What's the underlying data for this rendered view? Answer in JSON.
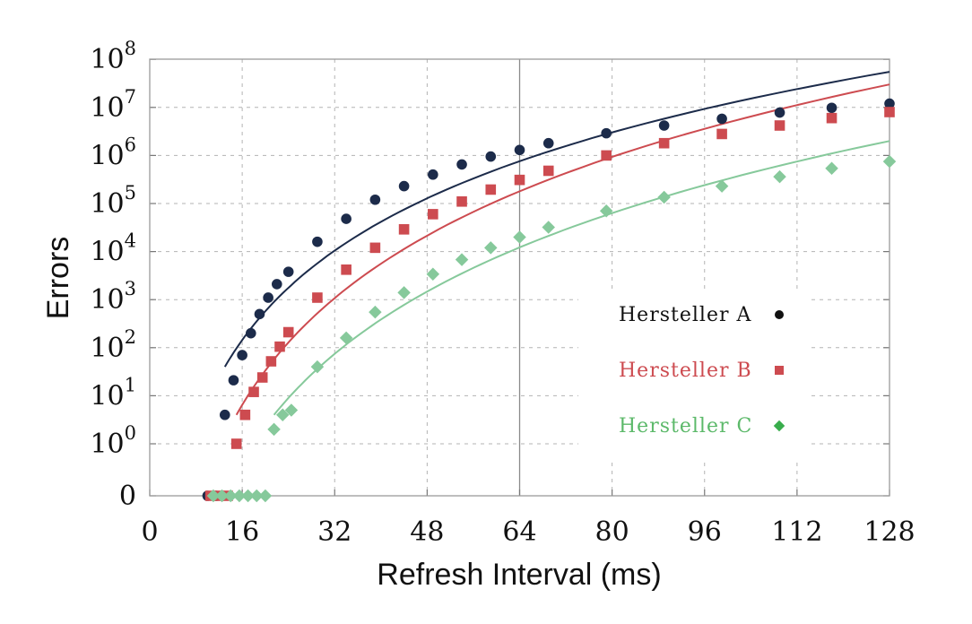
{
  "chart_data": {
    "type": "scatter",
    "title": "",
    "xlabel": "Refresh Interval (ms)",
    "ylabel": "Errors",
    "x_ticks": [
      "0",
      "16",
      "32",
      "48",
      "64",
      "80",
      "96",
      "112",
      "128"
    ],
    "x_tick_values": [
      0,
      16,
      32,
      48,
      64,
      80,
      96,
      112,
      128
    ],
    "xlim": [
      0,
      128
    ],
    "y_scale": "log (with separate zero row)",
    "y_ticks": [
      {
        "base": "0",
        "exp": ""
      },
      {
        "base": "10",
        "exp": "0"
      },
      {
        "base": "10",
        "exp": "1"
      },
      {
        "base": "10",
        "exp": "2"
      },
      {
        "base": "10",
        "exp": "3"
      },
      {
        "base": "10",
        "exp": "4"
      },
      {
        "base": "10",
        "exp": "5"
      },
      {
        "base": "10",
        "exp": "6"
      },
      {
        "base": "10",
        "exp": "7"
      },
      {
        "base": "10",
        "exp": "8"
      }
    ],
    "ylim": [
      1,
      100000000
    ],
    "grid": true,
    "legend_position": "right",
    "series": [
      {
        "name": "Hersteller A",
        "marker": "circle",
        "color": "#1c2b4a",
        "points": [
          {
            "x": 10,
            "y": 0
          },
          {
            "x": 11.5,
            "y": 0
          },
          {
            "x": 13,
            "y": 4
          },
          {
            "x": 14.5,
            "y": 21
          },
          {
            "x": 16,
            "y": 70
          },
          {
            "x": 17.5,
            "y": 200
          },
          {
            "x": 19,
            "y": 500
          },
          {
            "x": 20.5,
            "y": 1100
          },
          {
            "x": 22,
            "y": 2100
          },
          {
            "x": 24,
            "y": 3800
          },
          {
            "x": 29,
            "y": 16000
          },
          {
            "x": 34,
            "y": 48000
          },
          {
            "x": 39,
            "y": 120000
          },
          {
            "x": 44,
            "y": 230000
          },
          {
            "x": 49,
            "y": 400000
          },
          {
            "x": 54,
            "y": 650000
          },
          {
            "x": 59,
            "y": 950000
          },
          {
            "x": 64,
            "y": 1300000
          },
          {
            "x": 69,
            "y": 1800000
          },
          {
            "x": 79,
            "y": 2900000
          },
          {
            "x": 89,
            "y": 4200000
          },
          {
            "x": 99,
            "y": 5800000
          },
          {
            "x": 109,
            "y": 7800000
          },
          {
            "x": 118,
            "y": 9800000
          },
          {
            "x": 128,
            "y": 12000000
          }
        ],
        "fit": {
          "x0": 13,
          "x1": 128,
          "y0": 40,
          "y1": 55000000
        }
      },
      {
        "name": "Hersteller B",
        "marker": "square",
        "color": "#cd4b50",
        "points": [
          {
            "x": 10.5,
            "y": 0
          },
          {
            "x": 12,
            "y": 0
          },
          {
            "x": 13.5,
            "y": 0
          },
          {
            "x": 15,
            "y": 1
          },
          {
            "x": 16.5,
            "y": 4
          },
          {
            "x": 18,
            "y": 12
          },
          {
            "x": 19.5,
            "y": 24
          },
          {
            "x": 21,
            "y": 52
          },
          {
            "x": 22.5,
            "y": 105
          },
          {
            "x": 24,
            "y": 210
          },
          {
            "x": 29,
            "y": 1100
          },
          {
            "x": 34,
            "y": 4200
          },
          {
            "x": 39,
            "y": 12000
          },
          {
            "x": 44,
            "y": 29000
          },
          {
            "x": 49,
            "y": 60000
          },
          {
            "x": 54,
            "y": 110000
          },
          {
            "x": 59,
            "y": 195000
          },
          {
            "x": 64,
            "y": 310000
          },
          {
            "x": 69,
            "y": 480000
          },
          {
            "x": 79,
            "y": 1000000
          },
          {
            "x": 89,
            "y": 1800000
          },
          {
            "x": 99,
            "y": 2800000
          },
          {
            "x": 109,
            "y": 4200000
          },
          {
            "x": 118,
            "y": 6000000
          },
          {
            "x": 128,
            "y": 8000000
          }
        ],
        "fit": {
          "x0": 15,
          "x1": 128,
          "y0": 4,
          "y1": 30000000
        }
      },
      {
        "name": "Hersteller C",
        "marker": "diamond",
        "color": "#86c99b",
        "points": [
          {
            "x": 11,
            "y": 0
          },
          {
            "x": 12.5,
            "y": 0
          },
          {
            "x": 14,
            "y": 0
          },
          {
            "x": 15.5,
            "y": 0
          },
          {
            "x": 17,
            "y": 0
          },
          {
            "x": 18.5,
            "y": 0
          },
          {
            "x": 20,
            "y": 0
          },
          {
            "x": 21.5,
            "y": 2
          },
          {
            "x": 23,
            "y": 4
          },
          {
            "x": 24.5,
            "y": 5
          },
          {
            "x": 29,
            "y": 40
          },
          {
            "x": 34,
            "y": 160
          },
          {
            "x": 39,
            "y": 550
          },
          {
            "x": 44,
            "y": 1400
          },
          {
            "x": 49,
            "y": 3400
          },
          {
            "x": 54,
            "y": 6800
          },
          {
            "x": 59,
            "y": 12000
          },
          {
            "x": 64,
            "y": 20000
          },
          {
            "x": 69,
            "y": 32000
          },
          {
            "x": 79,
            "y": 70000
          },
          {
            "x": 89,
            "y": 135000
          },
          {
            "x": 99,
            "y": 230000
          },
          {
            "x": 109,
            "y": 360000
          },
          {
            "x": 118,
            "y": 540000
          },
          {
            "x": 128,
            "y": 750000
          }
        ],
        "fit": {
          "x0": 21.5,
          "x1": 128,
          "y0": 4,
          "y1": 2000000
        }
      }
    ]
  },
  "legend": {
    "items": [
      {
        "label": "Hersteller A",
        "color": "#111111",
        "marker_color": "#111111",
        "marker": "circle"
      },
      {
        "label": "Hersteller B",
        "color": "#cd4b50",
        "marker_color": "#cd4b50",
        "marker": "square"
      },
      {
        "label": "Hersteller C",
        "color": "#5cb96a",
        "marker_color": "#39ad4c",
        "marker": "diamond"
      }
    ]
  }
}
